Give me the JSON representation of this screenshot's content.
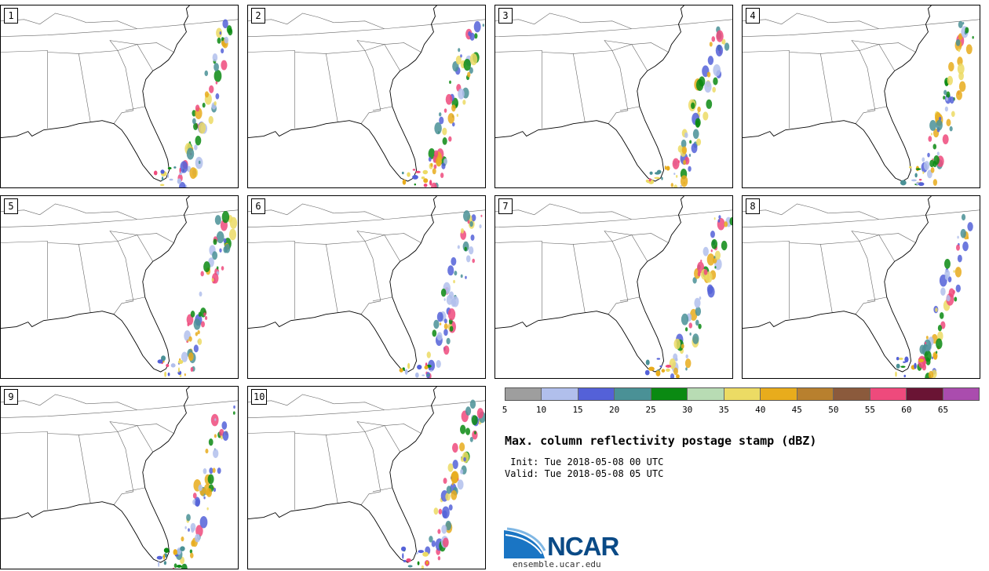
{
  "panels": [
    {
      "label": "1"
    },
    {
      "label": "2"
    },
    {
      "label": "3"
    },
    {
      "label": "4"
    },
    {
      "label": "5"
    },
    {
      "label": "6"
    },
    {
      "label": "7"
    },
    {
      "label": "8"
    },
    {
      "label": "9"
    },
    {
      "label": "10"
    }
  ],
  "colorbar": {
    "colors": [
      "#9e9e9e",
      "#b1bfec",
      "#5461d8",
      "#4a9196",
      "#0a8a12",
      "#b8dcb4",
      "#ecdb64",
      "#e8ac1c",
      "#b8802e",
      "#8b5a3c",
      "#ee4a7c",
      "#6a1434",
      "#aa4cae"
    ],
    "tick_labels": [
      "5",
      "10",
      "15",
      "20",
      "25",
      "30",
      "35",
      "40",
      "45",
      "50",
      "55",
      "60",
      "65"
    ]
  },
  "title": "Max. column reflectivity postage stamp (dBZ)",
  "init": " Init: Tue 2018-05-08 00 UTC",
  "valid": "Valid: Tue 2018-05-08 05 UTC",
  "logo": {
    "text": "NCAR",
    "url_text": "ensemble.ucar.edu"
  }
}
